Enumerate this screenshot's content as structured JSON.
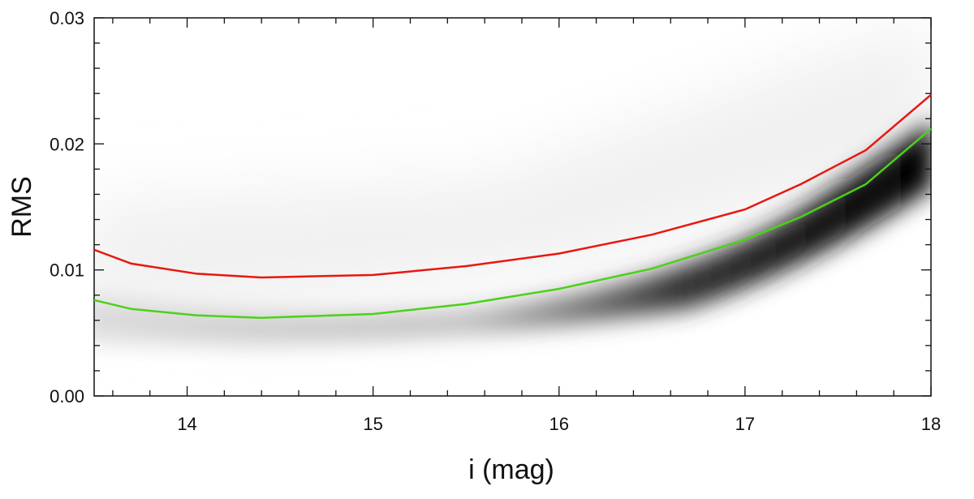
{
  "chart_data": {
    "type": "line",
    "x": [
      13.5,
      13.7,
      14.05,
      14.4,
      15,
      15.5,
      16,
      16.5,
      17,
      17.3,
      17.65,
      18
    ],
    "series": [
      {
        "color": "#e8170f",
        "values": [
          0.0116,
          0.0105,
          0.0097,
          0.0094,
          0.0096,
          0.0103,
          0.0113,
          0.0128,
          0.0148,
          0.0168,
          0.0195,
          0.0239
        ]
      },
      {
        "color": "#4cd11a",
        "values": [
          0.0076,
          0.0069,
          0.0064,
          0.0062,
          0.0065,
          0.0073,
          0.0085,
          0.0101,
          0.0124,
          0.0142,
          0.0168,
          0.0212
        ]
      }
    ],
    "xlabel": "i (mag)",
    "ylabel": "RMS",
    "xlim": [
      13.5,
      18
    ],
    "ylim": [
      0,
      0.03
    ],
    "xticks": [
      14,
      15,
      16,
      17,
      18
    ],
    "yticks": [
      {
        "value": 0,
        "label": "0.00"
      },
      0.01,
      0.02,
      0.03
    ],
    "xminorticks": [
      13.6,
      13.8,
      14.2,
      14.4,
      14.6,
      14.8,
      15.2,
      15.4,
      15.6,
      15.8,
      16.2,
      16.4,
      16.6,
      16.8,
      17.2,
      17.4,
      17.6,
      17.8
    ],
    "yminorticks": [
      0.002,
      0.004,
      0.006,
      0.008,
      0.012,
      0.014,
      0.016,
      0.018,
      0.022,
      0.024,
      0.026,
      0.028
    ]
  }
}
